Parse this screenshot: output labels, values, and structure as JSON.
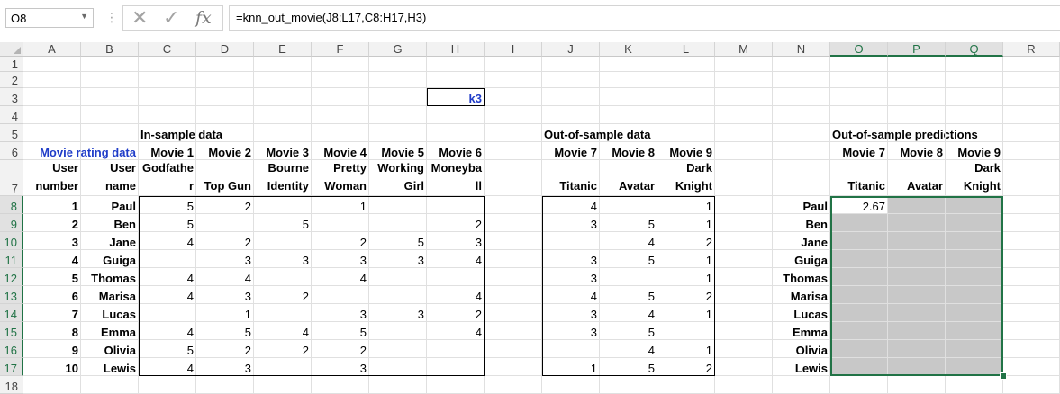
{
  "name_box": "O8",
  "formula_bar": {
    "separator": "⋮",
    "formula": "=knn_out_movie(J8:L17,C8:H17,H3)"
  },
  "icons": {
    "cancel": "close-icon",
    "enter": "check-icon",
    "function": "fx-icon"
  },
  "columns": [
    "A",
    "B",
    "C",
    "D",
    "E",
    "F",
    "G",
    "H",
    "I",
    "J",
    "K",
    "L",
    "M",
    "N",
    "O",
    "P",
    "Q",
    "R"
  ],
  "rows": [
    "1",
    "2",
    "3",
    "4",
    "5",
    "6",
    "7",
    "8",
    "9",
    "10",
    "11",
    "12",
    "13",
    "14",
    "15",
    "16",
    "17",
    "18"
  ],
  "selected": {
    "columns": [
      "O",
      "P",
      "Q"
    ],
    "rows": [
      "8",
      "9",
      "10",
      "11",
      "12",
      "13",
      "14",
      "15",
      "16",
      "17"
    ]
  },
  "colors": {
    "accent": "#217346",
    "label_blue": "#1f3cc8",
    "selection_fill": "#c8c8c8"
  },
  "sheet": {
    "k_label": "k",
    "k_value": "3",
    "in_sample_title": "In-sample data",
    "out_sample_title": "Out-of-sample data",
    "predictions_title": "Out-of-sample predictions",
    "movie_rating_data": "Movie rating data",
    "user_number_label": [
      "User",
      "number"
    ],
    "user_name_label": [
      "User",
      "name"
    ],
    "in_headers": [
      [
        "Movie 1",
        "Godfathe",
        "r"
      ],
      [
        "Movie 2",
        "",
        "Top Gun"
      ],
      [
        "Movie 3",
        "Bourne",
        "Identity"
      ],
      [
        "Movie 4",
        "Pretty",
        "Woman"
      ],
      [
        "Movie 5",
        "Working",
        "Girl"
      ],
      [
        "Movie 6",
        "Moneyba",
        "ll"
      ]
    ],
    "out_headers": [
      [
        "Movie 7",
        "",
        "Titanic"
      ],
      [
        "Movie 8",
        "",
        "Avatar"
      ],
      [
        "Movie 9",
        "Dark",
        "Knight"
      ]
    ],
    "pred_headers": [
      [
        "Movie 7",
        "",
        "Titanic"
      ],
      [
        "Movie 8",
        "",
        "Avatar"
      ],
      [
        "Movie 9",
        "Dark",
        "Knight"
      ]
    ],
    "users": [
      {
        "num": "1",
        "name": "Paul",
        "in": [
          "5",
          "2",
          "",
          "1",
          "",
          ""
        ],
        "out": [
          "4",
          "",
          "1"
        ]
      },
      {
        "num": "2",
        "name": "Ben",
        "in": [
          "5",
          "",
          "5",
          "",
          "",
          "2"
        ],
        "out": [
          "3",
          "5",
          "1"
        ]
      },
      {
        "num": "3",
        "name": "Jane",
        "in": [
          "4",
          "2",
          "",
          "2",
          "5",
          "3"
        ],
        "out": [
          "",
          "4",
          "2"
        ]
      },
      {
        "num": "4",
        "name": "Guiga",
        "in": [
          "",
          "3",
          "3",
          "3",
          "3",
          "4"
        ],
        "out": [
          "3",
          "5",
          "1"
        ]
      },
      {
        "num": "5",
        "name": "Thomas",
        "in": [
          "4",
          "4",
          "",
          "4",
          "",
          ""
        ],
        "out": [
          "3",
          "",
          "1"
        ]
      },
      {
        "num": "6",
        "name": "Marisa",
        "in": [
          "4",
          "3",
          "2",
          "",
          "",
          "4"
        ],
        "out": [
          "4",
          "5",
          "2"
        ]
      },
      {
        "num": "7",
        "name": "Lucas",
        "in": [
          "",
          "1",
          "",
          "3",
          "3",
          "2"
        ],
        "out": [
          "3",
          "4",
          "1"
        ]
      },
      {
        "num": "8",
        "name": "Emma",
        "in": [
          "4",
          "5",
          "4",
          "5",
          "",
          "4"
        ],
        "out": [
          "3",
          "5",
          ""
        ]
      },
      {
        "num": "9",
        "name": "Olivia",
        "in": [
          "5",
          "2",
          "2",
          "2",
          "",
          ""
        ],
        "out": [
          "",
          "4",
          "1"
        ]
      },
      {
        "num": "10",
        "name": "Lewis",
        "in": [
          "4",
          "3",
          "",
          "3",
          "",
          ""
        ],
        "out": [
          "1",
          "5",
          "2"
        ]
      }
    ],
    "prediction_first": "2.67"
  }
}
